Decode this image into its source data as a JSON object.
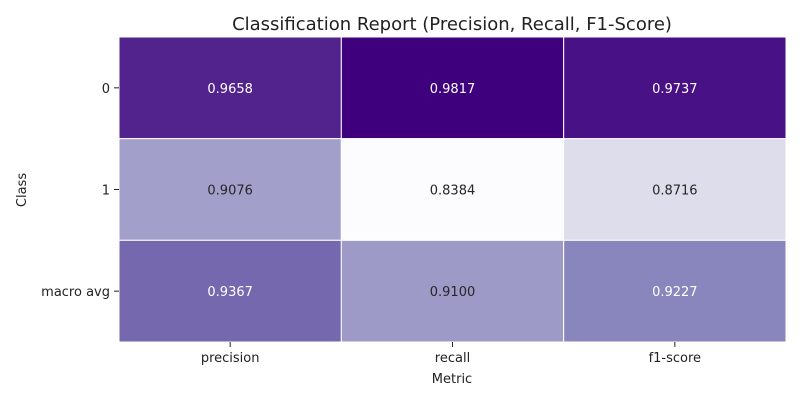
{
  "chart_data": {
    "type": "heatmap",
    "title": "Classification Report (Precision, Recall, F1-Score)",
    "xlabel": "Metric",
    "ylabel": "Class",
    "x_categories": [
      "precision",
      "recall",
      "f1-score"
    ],
    "y_categories": [
      "0",
      "1",
      "macro avg"
    ],
    "values": [
      [
        0.9658,
        0.9817,
        0.9737
      ],
      [
        0.9076,
        0.8384,
        0.8716
      ],
      [
        0.9367,
        0.91,
        0.9227
      ]
    ],
    "value_labels": [
      [
        "0.9658",
        "0.9817",
        "0.9737"
      ],
      [
        "0.9076",
        "0.8384",
        "0.8716"
      ],
      [
        "0.9367",
        "0.9100",
        "0.9227"
      ]
    ],
    "colormap": "Purples",
    "color_range": [
      0.8384,
      0.9817
    ],
    "colors": {
      "low": "#fcfbfd",
      "high": "#3f007d"
    }
  }
}
